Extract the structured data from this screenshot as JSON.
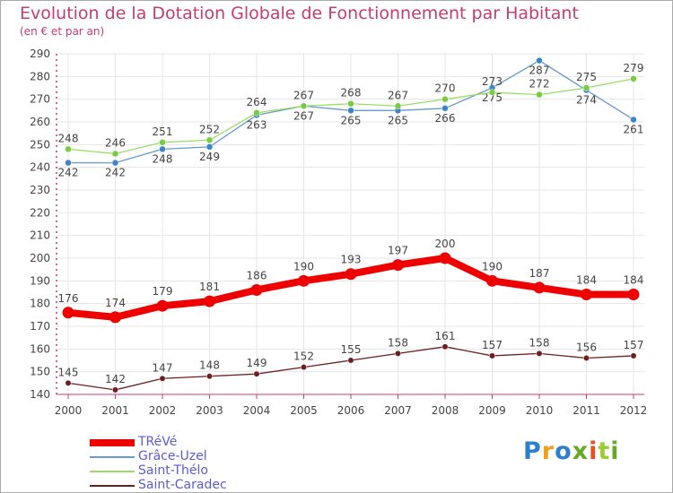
{
  "chart_data": {
    "type": "line",
    "title": "Evolution de la Dotation Globale de Fonctionnement par Habitant",
    "subtitle": "(en € et par an)",
    "xlabel": "",
    "ylabel": "",
    "ylim": [
      140,
      290
    ],
    "yticks": [
      140,
      150,
      160,
      170,
      180,
      190,
      200,
      210,
      220,
      230,
      240,
      250,
      260,
      270,
      280,
      290
    ],
    "categories": [
      "2000",
      "2001",
      "2002",
      "2003",
      "2004",
      "2005",
      "2006",
      "2007",
      "2008",
      "2009",
      "2010",
      "2011",
      "2012"
    ],
    "grid": true,
    "legend_position": "bottom-left",
    "series": [
      {
        "name": "TRéVé",
        "color": "#ee0000",
        "values": [
          176,
          174,
          179,
          181,
          186,
          190,
          193,
          197,
          200,
          190,
          187,
          184,
          184
        ]
      },
      {
        "name": "Grâce-Uzel",
        "color": "#6699cc",
        "values": [
          242,
          242,
          248,
          249,
          263,
          267,
          265,
          265,
          266,
          275,
          287,
          274,
          261
        ]
      },
      {
        "name": "Saint-Thélo",
        "color": "#99dd66",
        "values": [
          248,
          246,
          251,
          252,
          264,
          267,
          268,
          267,
          270,
          273,
          272,
          275,
          279
        ]
      },
      {
        "name": "Saint-Caradec",
        "color": "#6b1f1f",
        "values": [
          145,
          142,
          147,
          148,
          149,
          152,
          155,
          158,
          161,
          157,
          158,
          156,
          157
        ]
      }
    ]
  },
  "brand": {
    "letters": [
      "P",
      "r",
      "o",
      "x",
      "i",
      "t",
      "i"
    ]
  }
}
